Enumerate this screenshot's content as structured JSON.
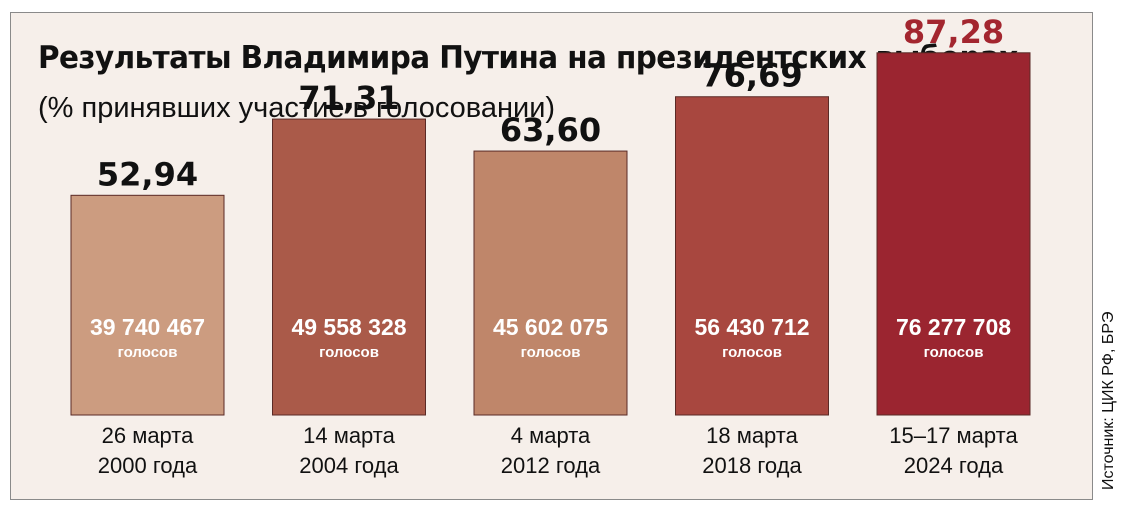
{
  "title": "Результаты Владимира Путина на президентских выборах",
  "subtitle": "(% принявших участие в голосовании)",
  "source": "Источник: ЦИК РФ, БРЭ",
  "colors": {
    "background": "#f6efea",
    "highlight_value": "#a3262f"
  },
  "chart_data": {
    "type": "bar",
    "title": "Результаты Владимира Путина на президентских выборах",
    "subtitle": "(% принявших участие в голосовании)",
    "ylim": [
      0,
      100
    ],
    "grid": false,
    "categories": [
      [
        "26 марта",
        "2000 года"
      ],
      [
        "14 марта",
        "2004 года"
      ],
      [
        "4 марта",
        "2012 года"
      ],
      [
        "18 марта",
        "2018 года"
      ],
      [
        "15–17 марта",
        "2024 года"
      ]
    ],
    "values": [
      52.94,
      71.31,
      63.6,
      76.69,
      87.28
    ],
    "value_labels": [
      "52,94",
      "71,31",
      "63,60",
      "76,69",
      "87,28"
    ],
    "votes": [
      "39 740 467",
      "49 558 328",
      "45 602 075",
      "56 430 712",
      "76 277 708"
    ],
    "votes_unit": "голосов",
    "bar_colors": [
      "#cc9c80",
      "#aa5a49",
      "#bf866a",
      "#a8473f",
      "#9b2530"
    ],
    "value_label_colors": [
      "#111111",
      "#111111",
      "#111111",
      "#111111",
      "#a3262f"
    ]
  }
}
